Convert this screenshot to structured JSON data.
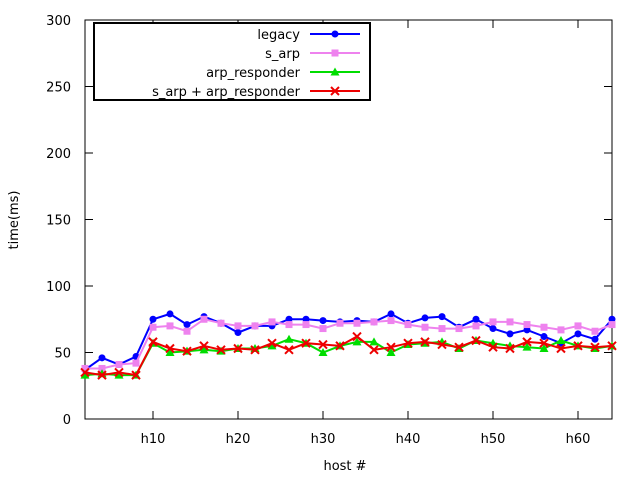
{
  "chart_data": {
    "type": "line",
    "title": "",
    "xlabel": "host #",
    "ylabel": "time(ms)",
    "xlim": [
      2,
      64
    ],
    "ylim": [
      0,
      300
    ],
    "yticks": [
      0,
      50,
      100,
      150,
      200,
      250,
      300
    ],
    "xticks": [
      {
        "x": 10,
        "label": "h10"
      },
      {
        "x": 20,
        "label": "h20"
      },
      {
        "x": 30,
        "label": "h30"
      },
      {
        "x": 40,
        "label": "h40"
      },
      {
        "x": 50,
        "label": "h50"
      },
      {
        "x": 60,
        "label": "h60"
      }
    ],
    "grid": false,
    "legend_position": "top-left",
    "x": [
      2,
      4,
      6,
      8,
      10,
      12,
      14,
      16,
      18,
      20,
      22,
      24,
      26,
      28,
      30,
      32,
      34,
      36,
      38,
      40,
      42,
      44,
      46,
      48,
      50,
      52,
      54,
      56,
      58,
      60,
      62,
      64
    ],
    "series": [
      {
        "name": "legacy",
        "color": "#0000ff",
        "marker": "circle",
        "values": [
          37,
          46,
          41,
          47,
          75,
          79,
          71,
          77,
          72,
          65,
          70,
          70,
          75,
          75,
          74,
          73,
          74,
          73,
          79,
          72,
          76,
          77,
          69,
          75,
          68,
          64,
          67,
          62,
          57,
          64,
          60,
          75
        ]
      },
      {
        "name": "s_arp",
        "color": "#ee82ee",
        "marker": "square",
        "values": [
          38,
          38,
          41,
          42,
          69,
          70,
          66,
          75,
          72,
          70,
          70,
          73,
          71,
          71,
          68,
          72,
          72,
          73,
          74,
          71,
          69,
          68,
          68,
          70,
          73,
          73,
          71,
          69,
          67,
          70,
          66,
          71
        ]
      },
      {
        "name": "arp_responder",
        "color": "#00dd00",
        "marker": "triangle",
        "values": [
          33,
          34,
          33,
          33,
          57,
          50,
          51,
          52,
          51,
          53,
          53,
          55,
          60,
          57,
          50,
          55,
          58,
          58,
          50,
          56,
          57,
          58,
          53,
          59,
          57,
          55,
          54,
          53,
          59,
          55,
          53,
          55
        ]
      },
      {
        "name": "s_arp + arp_responder",
        "color": "#ee0000",
        "marker": "cross",
        "values": [
          35,
          33,
          35,
          33,
          58,
          53,
          51,
          55,
          52,
          53,
          52,
          57,
          52,
          57,
          56,
          55,
          62,
          52,
          54,
          57,
          58,
          56,
          54,
          59,
          54,
          53,
          58,
          57,
          53,
          55,
          54,
          55
        ]
      }
    ]
  }
}
